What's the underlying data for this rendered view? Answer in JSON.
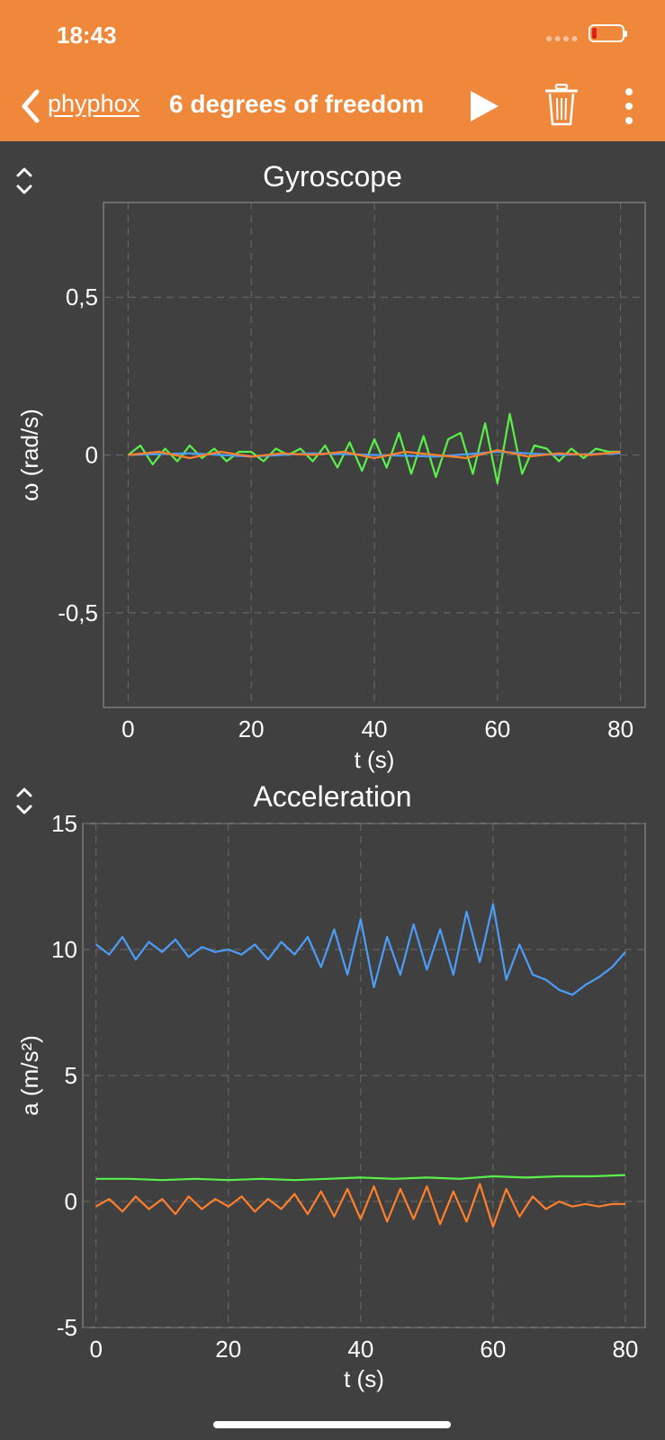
{
  "status": {
    "time": "18:43"
  },
  "nav": {
    "back_label": "phyphox",
    "title": "6 degrees of freedom",
    "icons": [
      "chevron-left-icon",
      "play-icon",
      "trash-icon",
      "more-vertical-icon"
    ]
  },
  "colors": {
    "accent": "#f0883c",
    "background": "#404040",
    "series_x": "#ff7f2a",
    "series_y": "#4d9df8",
    "series_z": "#5af04a"
  },
  "chart_data": [
    {
      "type": "line",
      "title": "Gyroscope",
      "xlabel": "t (s)",
      "ylabel": "ω (rad/s)",
      "xlim": [
        -4,
        84
      ],
      "ylim": [
        -0.8,
        0.8
      ],
      "xticks": [
        0,
        20,
        40,
        60,
        80
      ],
      "xtick_labels": [
        "0",
        "20",
        "40",
        "60",
        "80"
      ],
      "yticks": [
        -0.5,
        0,
        0.5
      ],
      "ytick_labels": [
        "-0,5",
        "0",
        "0,5"
      ],
      "grid": true,
      "series": [
        {
          "color": "#5af04a",
          "x": [
            0,
            2,
            4,
            6,
            8,
            10,
            12,
            14,
            16,
            18,
            20,
            22,
            24,
            26,
            28,
            30,
            32,
            34,
            36,
            38,
            40,
            42,
            44,
            46,
            48,
            50,
            52,
            54,
            56,
            58,
            60,
            62,
            64,
            66,
            68,
            70,
            72,
            74,
            76,
            78,
            80
          ],
          "y": [
            0,
            0.03,
            -0.03,
            0.02,
            -0.02,
            0.03,
            -0.01,
            0.02,
            -0.02,
            0.01,
            0.01,
            -0.02,
            0.02,
            0,
            0.02,
            -0.02,
            0.03,
            -0.04,
            0.04,
            -0.05,
            0.05,
            -0.04,
            0.07,
            -0.06,
            0.06,
            -0.07,
            0.05,
            0.07,
            -0.06,
            0.1,
            -0.09,
            0.13,
            -0.06,
            0.03,
            0.02,
            -0.02,
            0.02,
            -0.01,
            0.02,
            0.01,
            0.01
          ]
        },
        {
          "color": "#4d9df8",
          "x": [
            0,
            10,
            20,
            30,
            40,
            50,
            60,
            70,
            80
          ],
          "y": [
            0,
            0.005,
            -0.005,
            0.005,
            0,
            -0.005,
            0.01,
            0,
            0.005
          ]
        },
        {
          "color": "#ff7f2a",
          "x": [
            0,
            5,
            10,
            15,
            20,
            25,
            30,
            35,
            40,
            45,
            50,
            55,
            60,
            65,
            70,
            75,
            80
          ],
          "y": [
            0,
            0.01,
            -0.01,
            0.01,
            -0.005,
            0.005,
            0,
            0.01,
            -0.01,
            0.01,
            0,
            -0.01,
            0.015,
            -0.005,
            0.005,
            0,
            0.01
          ]
        }
      ]
    },
    {
      "type": "line",
      "title": "Acceleration",
      "xlabel": "t (s)",
      "ylabel": "a (m/s²)",
      "xlim": [
        -2,
        83
      ],
      "ylim": [
        -5,
        15
      ],
      "xticks": [
        0,
        20,
        40,
        60,
        80
      ],
      "xtick_labels": [
        "0",
        "20",
        "40",
        "60",
        "80"
      ],
      "yticks": [
        -5,
        0,
        5,
        10,
        15
      ],
      "ytick_labels": [
        "-5",
        "0",
        "5",
        "10",
        "15"
      ],
      "grid": true,
      "series": [
        {
          "color": "#4d9df8",
          "x": [
            0,
            2,
            4,
            6,
            8,
            10,
            12,
            14,
            16,
            18,
            20,
            22,
            24,
            26,
            28,
            30,
            32,
            34,
            36,
            38,
            40,
            42,
            44,
            46,
            48,
            50,
            52,
            54,
            56,
            58,
            60,
            62,
            64,
            66,
            68,
            70,
            72,
            74,
            76,
            78,
            80
          ],
          "y": [
            10.2,
            9.8,
            10.5,
            9.6,
            10.3,
            9.9,
            10.4,
            9.7,
            10.1,
            9.9,
            10.0,
            9.8,
            10.2,
            9.6,
            10.3,
            9.8,
            10.5,
            9.3,
            10.8,
            9.0,
            11.2,
            8.5,
            10.5,
            9.0,
            11.0,
            9.2,
            10.8,
            9.0,
            11.5,
            9.5,
            11.8,
            8.8,
            10.2,
            9.0,
            8.8,
            8.4,
            8.2,
            8.6,
            8.9,
            9.3,
            9.9
          ]
        },
        {
          "color": "#5af04a",
          "x": [
            0,
            5,
            10,
            15,
            20,
            25,
            30,
            35,
            40,
            45,
            50,
            55,
            60,
            65,
            70,
            75,
            80
          ],
          "y": [
            0.9,
            0.9,
            0.85,
            0.9,
            0.85,
            0.9,
            0.85,
            0.9,
            0.95,
            0.9,
            0.95,
            0.9,
            1.0,
            0.95,
            1.0,
            1.0,
            1.05
          ]
        },
        {
          "color": "#ff7f2a",
          "x": [
            0,
            2,
            4,
            6,
            8,
            10,
            12,
            14,
            16,
            18,
            20,
            22,
            24,
            26,
            28,
            30,
            32,
            34,
            36,
            38,
            40,
            42,
            44,
            46,
            48,
            50,
            52,
            54,
            56,
            58,
            60,
            62,
            64,
            66,
            68,
            70,
            72,
            74,
            76,
            78,
            80
          ],
          "y": [
            -0.2,
            0.1,
            -0.4,
            0.2,
            -0.3,
            0.1,
            -0.5,
            0.2,
            -0.3,
            0.1,
            -0.2,
            0.2,
            -0.4,
            0.1,
            -0.3,
            0.3,
            -0.5,
            0.4,
            -0.6,
            0.5,
            -0.7,
            0.6,
            -0.8,
            0.5,
            -0.7,
            0.6,
            -0.9,
            0.4,
            -0.8,
            0.7,
            -1.0,
            0.5,
            -0.6,
            0.2,
            -0.3,
            0.0,
            -0.2,
            -0.1,
            -0.2,
            -0.1,
            -0.1
          ]
        }
      ]
    }
  ]
}
